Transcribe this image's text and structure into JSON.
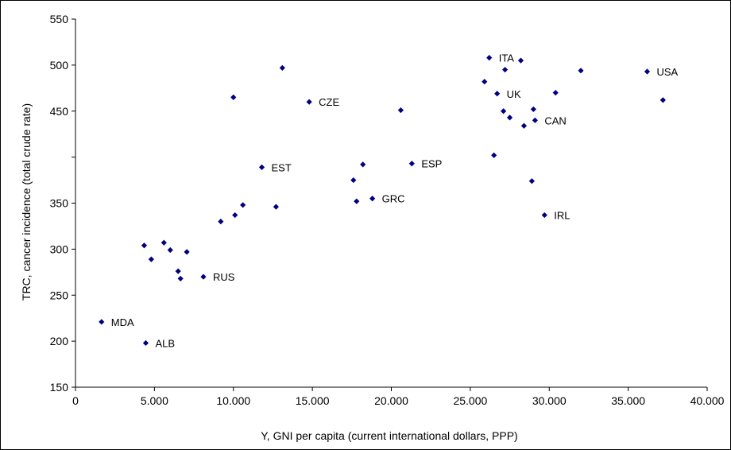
{
  "chart_data": {
    "type": "scatter",
    "title": "",
    "xlabel": "Y, GNI per capita (current international dollars, PPP)",
    "ylabel": "TRC, cancer incidence (total crude rate)",
    "xlim": [
      0,
      40000
    ],
    "ylim": [
      150,
      550
    ],
    "x_ticks": [
      {
        "value": 0,
        "label": "0"
      },
      {
        "value": 5000,
        "label": "5.000"
      },
      {
        "value": 10000,
        "label": "10.000"
      },
      {
        "value": 15000,
        "label": "15.000"
      },
      {
        "value": 20000,
        "label": "20.000"
      },
      {
        "value": 25000,
        "label": "25.000"
      },
      {
        "value": 30000,
        "label": "30.000"
      },
      {
        "value": 35000,
        "label": "35.000"
      },
      {
        "value": 40000,
        "label": "40.000"
      }
    ],
    "y_ticks": [
      {
        "value": 150,
        "label": "150"
      },
      {
        "value": 200,
        "label": "200"
      },
      {
        "value": 250,
        "label": "250"
      },
      {
        "value": 300,
        "label": "300"
      },
      {
        "value": 350,
        "label": "350"
      },
      {
        "value": 400,
        "label": ""
      },
      {
        "value": 450,
        "label": "450"
      },
      {
        "value": 500,
        "label": "500"
      },
      {
        "value": 550,
        "label": "550"
      }
    ],
    "grid": false,
    "legend": "none",
    "marker_color": "#000080",
    "points": [
      {
        "x": 1650,
        "y": 221,
        "label": "MDA"
      },
      {
        "x": 4450,
        "y": 198,
        "label": "ALB"
      },
      {
        "x": 4350,
        "y": 304,
        "label": ""
      },
      {
        "x": 4800,
        "y": 289,
        "label": ""
      },
      {
        "x": 5600,
        "y": 307,
        "label": ""
      },
      {
        "x": 6000,
        "y": 299,
        "label": ""
      },
      {
        "x": 6500,
        "y": 276,
        "label": ""
      },
      {
        "x": 6650,
        "y": 268,
        "label": ""
      },
      {
        "x": 7050,
        "y": 297,
        "label": ""
      },
      {
        "x": 8100,
        "y": 270,
        "label": "RUS"
      },
      {
        "x": 9200,
        "y": 330,
        "label": ""
      },
      {
        "x": 10100,
        "y": 337,
        "label": ""
      },
      {
        "x": 10600,
        "y": 348,
        "label": ""
      },
      {
        "x": 10000,
        "y": 465,
        "label": ""
      },
      {
        "x": 11800,
        "y": 389,
        "label": "EST"
      },
      {
        "x": 12700,
        "y": 346,
        "label": ""
      },
      {
        "x": 13100,
        "y": 497,
        "label": ""
      },
      {
        "x": 14800,
        "y": 460,
        "label": "CZE"
      },
      {
        "x": 17600,
        "y": 375,
        "label": ""
      },
      {
        "x": 17800,
        "y": 352,
        "label": ""
      },
      {
        "x": 18200,
        "y": 392,
        "label": ""
      },
      {
        "x": 18800,
        "y": 355,
        "label": "GRC"
      },
      {
        "x": 20600,
        "y": 451,
        "label": ""
      },
      {
        "x": 21300,
        "y": 393,
        "label": "ESP"
      },
      {
        "x": 25900,
        "y": 482,
        "label": ""
      },
      {
        "x": 26200,
        "y": 508,
        "label": "ITA"
      },
      {
        "x": 26500,
        "y": 402,
        "label": ""
      },
      {
        "x": 26700,
        "y": 469,
        "label": "UK"
      },
      {
        "x": 27100,
        "y": 450,
        "label": ""
      },
      {
        "x": 27200,
        "y": 495,
        "label": ""
      },
      {
        "x": 27500,
        "y": 443,
        "label": ""
      },
      {
        "x": 28200,
        "y": 505,
        "label": ""
      },
      {
        "x": 28400,
        "y": 434,
        "label": ""
      },
      {
        "x": 28900,
        "y": 374,
        "label": ""
      },
      {
        "x": 29000,
        "y": 452,
        "label": ""
      },
      {
        "x": 29100,
        "y": 440,
        "label": "CAN"
      },
      {
        "x": 29700,
        "y": 337,
        "label": "IRL"
      },
      {
        "x": 30400,
        "y": 470,
        "label": ""
      },
      {
        "x": 32000,
        "y": 494,
        "label": ""
      },
      {
        "x": 36200,
        "y": 493,
        "label": "USA"
      },
      {
        "x": 37200,
        "y": 462,
        "label": ""
      }
    ]
  }
}
